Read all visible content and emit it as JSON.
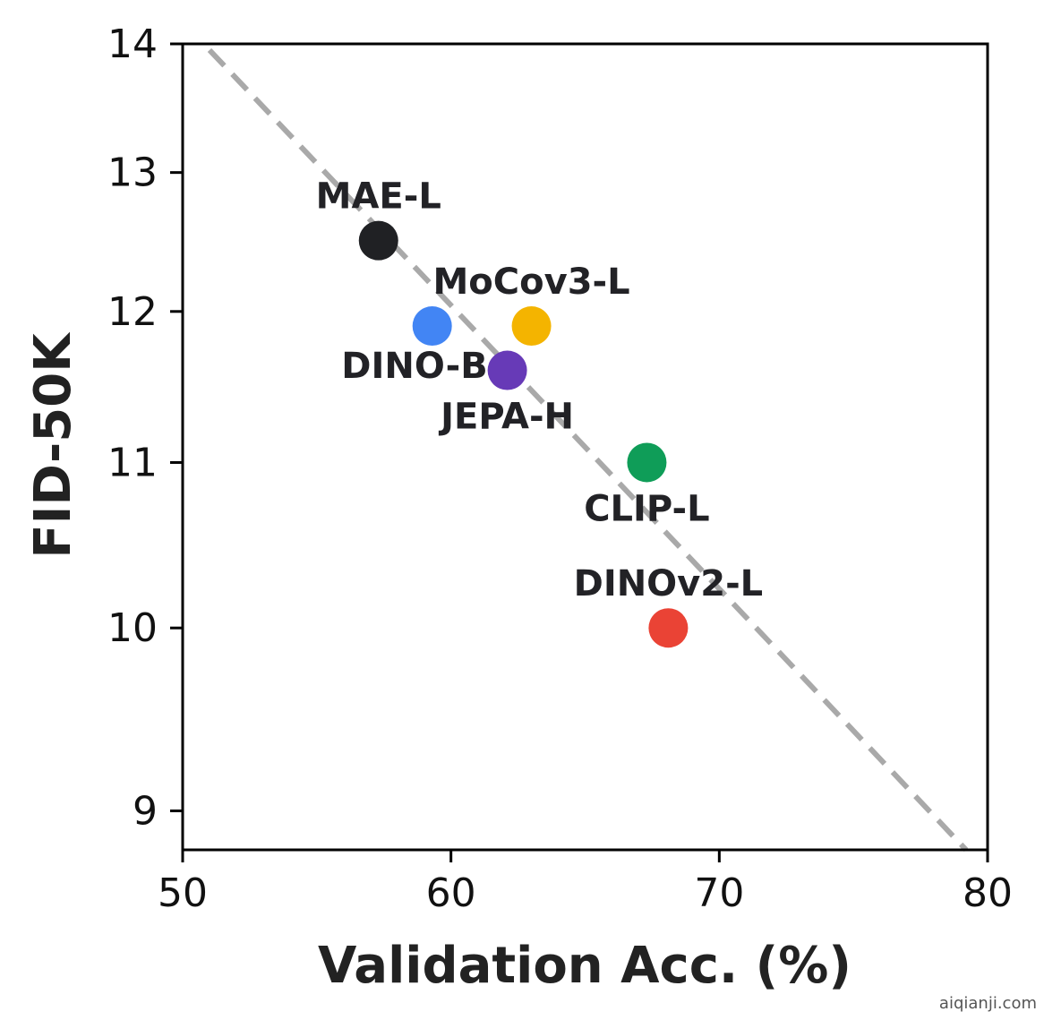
{
  "chart_data": {
    "type": "scatter",
    "title": "",
    "xlabel": "Validation Acc. (%)",
    "ylabel": "FID-50K",
    "xlim": [
      50,
      80
    ],
    "ylim": [
      8.8,
      14
    ],
    "y_scale": "log",
    "xticks": [
      50,
      60,
      70,
      80
    ],
    "yticks": [
      9,
      10,
      11,
      12,
      13,
      14
    ],
    "grid": false,
    "points": [
      {
        "name": "MAE-L",
        "x": 57.3,
        "y": 12.5,
        "color": "#202124",
        "label_pos": "above"
      },
      {
        "name": "DINO-B",
        "x": 59.3,
        "y": 11.9,
        "color": "#4285F4",
        "label_pos": "below-left"
      },
      {
        "name": "MoCov3-L",
        "x": 63.0,
        "y": 11.9,
        "color": "#F4B400",
        "label_pos": "above"
      },
      {
        "name": "JEPA-H",
        "x": 62.1,
        "y": 11.6,
        "color": "#673AB7",
        "label_pos": "below"
      },
      {
        "name": "CLIP-L",
        "x": 67.3,
        "y": 11.0,
        "color": "#0F9D58",
        "label_pos": "below"
      },
      {
        "name": "DINOv2-L",
        "x": 68.1,
        "y": 10.0,
        "color": "#EA4335",
        "label_pos": "above"
      }
    ],
    "trend_line": {
      "style": "dashed",
      "color": "#A9A9A9",
      "x": [
        51,
        79.2
      ],
      "y": [
        13.95,
        8.8
      ]
    }
  },
  "watermark": "aiqianji.com"
}
